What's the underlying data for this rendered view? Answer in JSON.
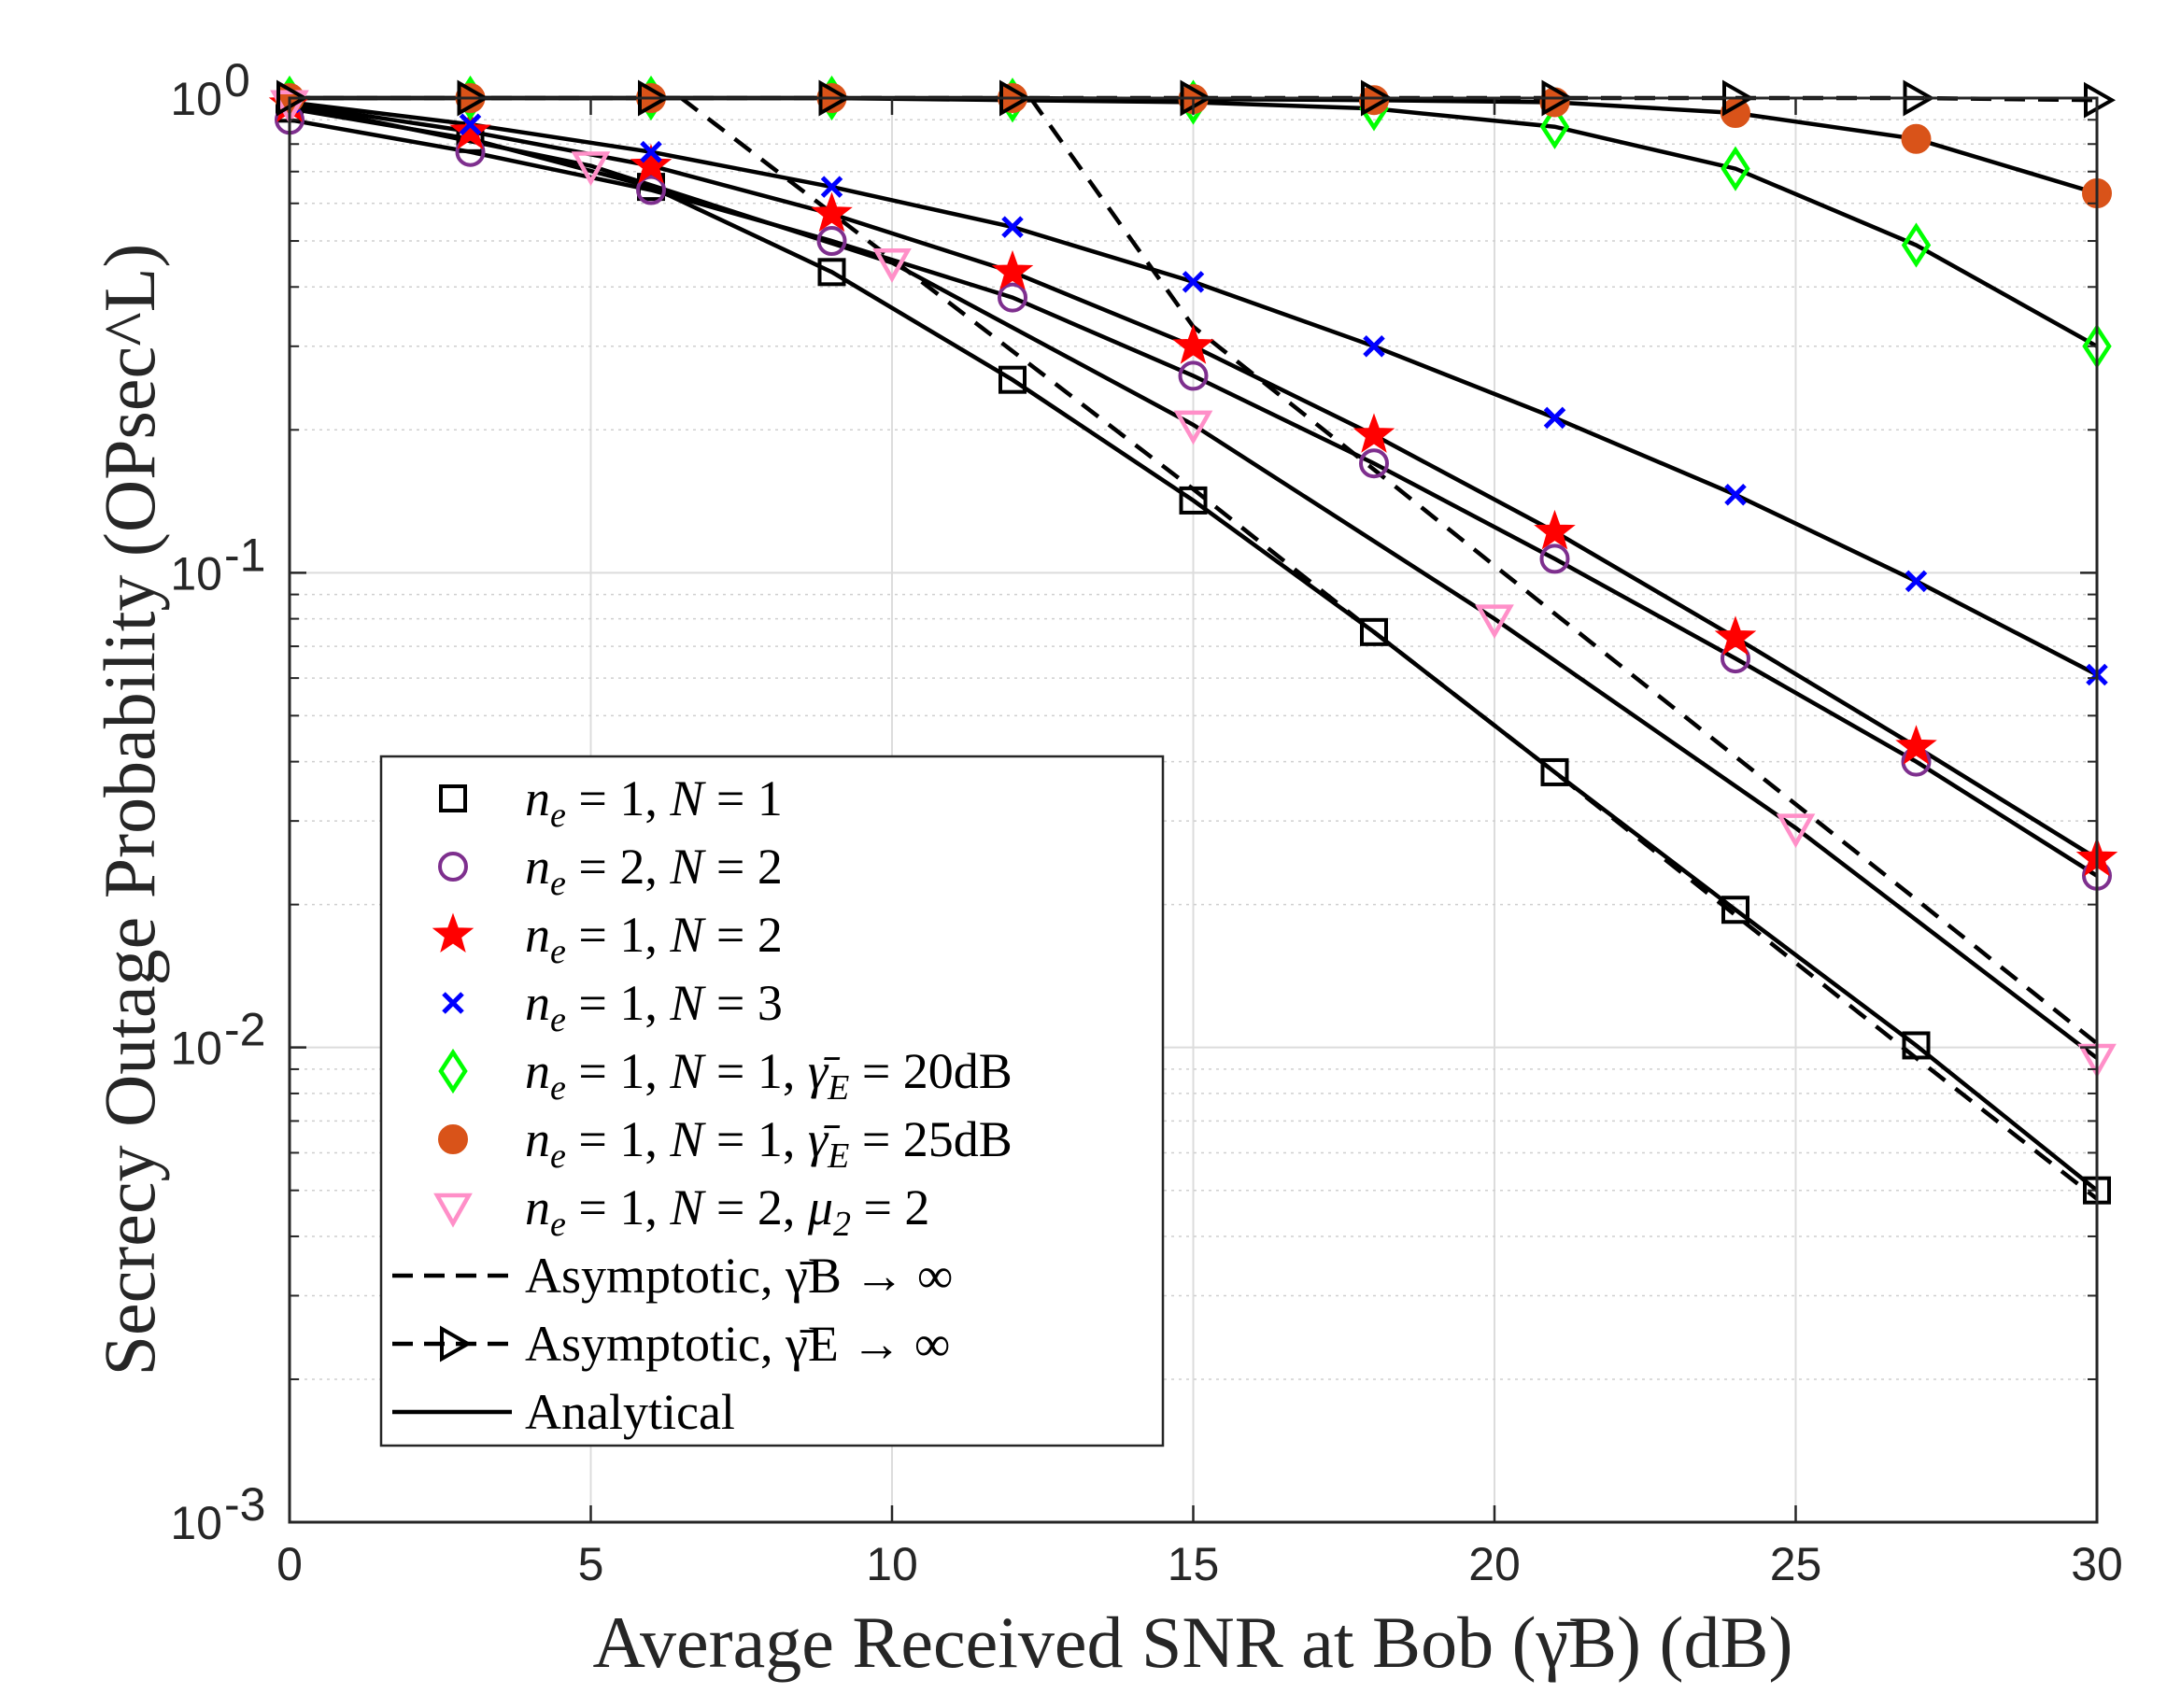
{
  "chart_data": {
    "type": "line",
    "xlabel": "Average Received SNR at Bob (γ̄B) (dB)",
    "ylabel": "Secrecy Outage Probability (OPsec^L)",
    "xlim": [
      0,
      30
    ],
    "ylim": [
      0.001,
      1
    ],
    "yscale": "log",
    "grid": true,
    "legend_position": "lower-left",
    "x_ticks": [
      0,
      5,
      10,
      15,
      20,
      25,
      30
    ],
    "y_ticks": [
      {
        "value": 1,
        "base": "10",
        "exp": "0"
      },
      {
        "value": 0.1,
        "base": "10",
        "exp": "-1"
      },
      {
        "value": 0.01,
        "base": "10",
        "exp": "-2"
      },
      {
        "value": 0.001,
        "base": "10",
        "exp": "-3"
      }
    ],
    "series": [
      {
        "name": "ne = 1, N = 1",
        "marker": "square",
        "color": "#000000",
        "x": [
          0,
          3,
          6,
          9,
          12,
          15,
          18,
          21,
          24,
          27,
          30
        ],
        "y": [
          0.95,
          0.82,
          0.65,
          0.43,
          0.255,
          0.142,
          0.075,
          0.038,
          0.0195,
          0.0101,
          0.005
        ]
      },
      {
        "name": "ne = 2, N = 2",
        "marker": "circle-open",
        "color": "#7E2F8E",
        "x": [
          0,
          3,
          6,
          9,
          12,
          15,
          18,
          21,
          24,
          27,
          30
        ],
        "y": [
          0.9,
          0.77,
          0.64,
          0.5,
          0.38,
          0.26,
          0.17,
          0.107,
          0.066,
          0.04,
          0.023
        ]
      },
      {
        "name": "ne = 1, N = 2",
        "marker": "star",
        "color": "#FF0000",
        "x": [
          0,
          3,
          6,
          9,
          12,
          15,
          18,
          21,
          24,
          27,
          30
        ],
        "y": [
          0.97,
          0.85,
          0.72,
          0.57,
          0.43,
          0.3,
          0.195,
          0.122,
          0.073,
          0.043,
          0.025
        ]
      },
      {
        "name": "ne = 1, N = 3",
        "marker": "x",
        "color": "#0000FF",
        "x": [
          0,
          3,
          6,
          9,
          12,
          15,
          18,
          21,
          24,
          27,
          30
        ],
        "y": [
          0.98,
          0.88,
          0.77,
          0.65,
          0.535,
          0.41,
          0.3,
          0.212,
          0.146,
          0.096,
          0.061
        ]
      },
      {
        "name": "ne = 1, N = 1, γ̄E = 20dB",
        "marker": "diamond",
        "color": "#00FF00",
        "x": [
          0,
          3,
          6,
          9,
          12,
          15,
          18,
          21,
          24,
          27,
          30
        ],
        "y": [
          1.0,
          1.0,
          1.0,
          1.0,
          0.99,
          0.98,
          0.95,
          0.87,
          0.71,
          0.49,
          0.3
        ]
      },
      {
        "name": "ne = 1, N = 1, γ̄E = 25dB",
        "marker": "circle-filled",
        "color": "#D95319",
        "x": [
          0,
          3,
          6,
          9,
          12,
          15,
          18,
          21,
          24,
          27,
          30
        ],
        "y": [
          1.0,
          1.0,
          1.0,
          1.0,
          1.0,
          0.995,
          0.99,
          0.98,
          0.93,
          0.82,
          0.63
        ]
      },
      {
        "name": "ne = 1, N = 2, μ2 = 2",
        "marker": "triangle-down",
        "color": "#FF8FC8",
        "x": [
          0,
          5,
          10,
          15,
          20,
          25,
          30
        ],
        "y": [
          0.97,
          0.72,
          0.45,
          0.205,
          0.08,
          0.029,
          0.0095
        ]
      },
      {
        "name": "Asymptotic, γ̄B → ∞",
        "marker": "none",
        "color": "#000000",
        "line": "dashed",
        "curves": [
          {
            "x": [
              6.5,
              15,
              18,
              21,
              24,
              27,
              30
            ],
            "y": [
              1.0,
              0.15,
              0.075,
              0.038,
              0.019,
              0.0095,
              0.0048
            ]
          },
          {
            "x": [
              12.3,
              15,
              18,
              21,
              24,
              27,
              30
            ],
            "y": [
              1.0,
              0.33,
              0.165,
              0.082,
              0.041,
              0.0205,
              0.0102
            ]
          }
        ]
      },
      {
        "name": "Asymptotic, γ̄E → ∞",
        "marker": "triangle-right",
        "color": "#000000",
        "line": "dashed",
        "x": [
          0,
          3,
          6,
          9,
          12,
          15,
          18,
          21,
          24,
          27,
          30
        ],
        "y": [
          1.0,
          1.0,
          1.0,
          1.0,
          1.0,
          1.0,
          1.0,
          1.0,
          1.0,
          1.0,
          0.99
        ]
      },
      {
        "name": "Analytical",
        "marker": "none",
        "color": "#000000",
        "line": "solid"
      }
    ]
  },
  "legend": [
    {
      "ne": "1",
      "N": "1",
      "extra_sym": "",
      "extra_sub": "",
      "extra_val": "",
      "marker": "square",
      "color": "#000000"
    },
    {
      "ne": "2",
      "N": "2",
      "extra_sym": "",
      "extra_sub": "",
      "extra_val": "",
      "marker": "circle-open",
      "color": "#7E2F8E"
    },
    {
      "ne": "1",
      "N": "2",
      "extra_sym": "",
      "extra_sub": "",
      "extra_val": "",
      "marker": "star",
      "color": "#FF0000"
    },
    {
      "ne": "1",
      "N": "3",
      "extra_sym": "",
      "extra_sub": "",
      "extra_val": "",
      "marker": "x",
      "color": "#0000FF"
    },
    {
      "ne": "1",
      "N": "1",
      "extra_sym": "γ̄",
      "extra_sub": "E",
      "extra_val": "20dB",
      "marker": "diamond",
      "color": "#00FF00"
    },
    {
      "ne": "1",
      "N": "1",
      "extra_sym": "γ̄",
      "extra_sub": "E",
      "extra_val": "25dB",
      "marker": "circle-filled",
      "color": "#D95319"
    },
    {
      "ne": "1",
      "N": "2",
      "extra_sym": "μ",
      "extra_sub": "2",
      "extra_val": "2",
      "marker": "triangle-down",
      "color": "#FF8FC8"
    },
    {
      "text": "Asymptotic, γ̄B → ∞",
      "line": "dashed",
      "marker": "none"
    },
    {
      "text": "Asymptotic, γ̄E → ∞",
      "line": "dashed",
      "marker": "triangle-right"
    },
    {
      "text": "Analytical",
      "line": "solid",
      "marker": "none"
    }
  ]
}
